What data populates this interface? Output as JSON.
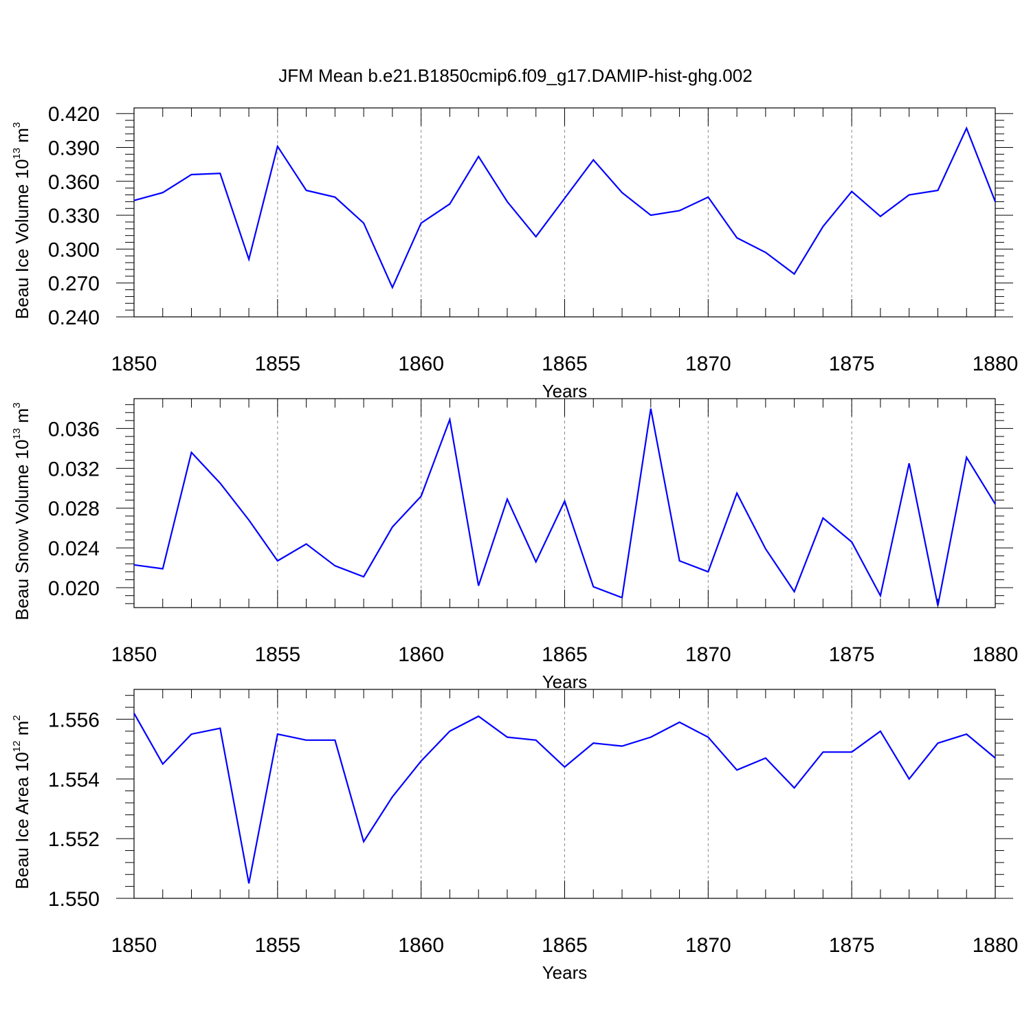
{
  "chart_data": [
    {
      "type": "line",
      "title": "JFM Mean b.e21.B1850cmip6.f09_g17.DAMIP-hist-ghg.002",
      "ylabel": "Beau Ice Volume 10",
      "ylabel_exp": "13",
      "ylabel_unit": "m",
      "ylabel_unit_exp": "3",
      "xlabel": "Years",
      "xlim": [
        1850,
        1880
      ],
      "ylim": [
        0.24,
        0.425
      ],
      "yticks": [
        "0.240",
        "0.270",
        "0.300",
        "0.330",
        "0.360",
        "0.390",
        "0.420"
      ],
      "xticks": [
        "1850",
        "1855",
        "1860",
        "1865",
        "1870",
        "1875",
        "1880"
      ],
      "color": "#0000ff",
      "x": [
        1850,
        1851,
        1852,
        1853,
        1854,
        1855,
        1856,
        1857,
        1858,
        1859,
        1860,
        1861,
        1862,
        1863,
        1864,
        1865,
        1866,
        1867,
        1868,
        1869,
        1870,
        1871,
        1872,
        1873,
        1874,
        1875,
        1876,
        1877,
        1878,
        1879,
        1880
      ],
      "values": [
        0.343,
        0.35,
        0.366,
        0.367,
        0.291,
        0.391,
        0.352,
        0.346,
        0.323,
        0.266,
        0.323,
        0.34,
        0.382,
        0.342,
        0.311,
        0.345,
        0.379,
        0.35,
        0.33,
        0.334,
        0.346,
        0.31,
        0.297,
        0.278,
        0.32,
        0.351,
        0.329,
        0.348,
        0.352,
        0.407,
        0.342
      ]
    },
    {
      "type": "line",
      "title": "",
      "ylabel": "Beau Snow Volume 10",
      "ylabel_exp": "13",
      "ylabel_unit": "m",
      "ylabel_unit_exp": "3",
      "xlabel": "Years",
      "xlim": [
        1850,
        1880
      ],
      "ylim": [
        0.018,
        0.039
      ],
      "yticks": [
        "0.020",
        "0.024",
        "0.028",
        "0.032",
        "0.036"
      ],
      "xticks": [
        "1850",
        "1855",
        "1860",
        "1865",
        "1870",
        "1875",
        "1880"
      ],
      "color": "#0000ff",
      "x": [
        1850,
        1851,
        1852,
        1853,
        1854,
        1855,
        1856,
        1857,
        1858,
        1859,
        1860,
        1861,
        1862,
        1863,
        1864,
        1865,
        1866,
        1867,
        1868,
        1869,
        1870,
        1871,
        1872,
        1873,
        1874,
        1875,
        1876,
        1877,
        1878,
        1879,
        1880
      ],
      "values": [
        0.0223,
        0.0219,
        0.0336,
        0.0305,
        0.0268,
        0.0227,
        0.0244,
        0.0222,
        0.0211,
        0.0261,
        0.0292,
        0.0369,
        0.0202,
        0.0289,
        0.0226,
        0.0287,
        0.0201,
        0.019,
        0.038,
        0.0227,
        0.0216,
        0.0295,
        0.0239,
        0.0196,
        0.027,
        0.0246,
        0.0192,
        0.0325,
        0.0182,
        0.0331,
        0.0284
      ]
    },
    {
      "type": "line",
      "title": "",
      "ylabel": "Beau Ice Area 10",
      "ylabel_exp": "12",
      "ylabel_unit": "m",
      "ylabel_unit_exp": "2",
      "xlabel": "Years",
      "xlim": [
        1850,
        1880
      ],
      "ylim": [
        1.55,
        1.557
      ],
      "yticks": [
        "1.550",
        "1.552",
        "1.554",
        "1.556"
      ],
      "xticks": [
        "1850",
        "1855",
        "1860",
        "1865",
        "1870",
        "1875",
        "1880"
      ],
      "color": "#0000ff",
      "x": [
        1850,
        1851,
        1852,
        1853,
        1854,
        1855,
        1856,
        1857,
        1858,
        1859,
        1860,
        1861,
        1862,
        1863,
        1864,
        1865,
        1866,
        1867,
        1868,
        1869,
        1870,
        1871,
        1872,
        1873,
        1874,
        1875,
        1876,
        1877,
        1878,
        1879,
        1880
      ],
      "values": [
        1.5562,
        1.5545,
        1.5555,
        1.5557,
        1.5505,
        1.5555,
        1.5553,
        1.5553,
        1.5519,
        1.5534,
        1.5546,
        1.5556,
        1.5561,
        1.5554,
        1.5553,
        1.5544,
        1.5552,
        1.5551,
        1.5554,
        1.5559,
        1.5554,
        1.5543,
        1.5547,
        1.5537,
        1.5549,
        1.5549,
        1.5556,
        1.554,
        1.5552,
        1.5555,
        1.5547
      ]
    }
  ]
}
